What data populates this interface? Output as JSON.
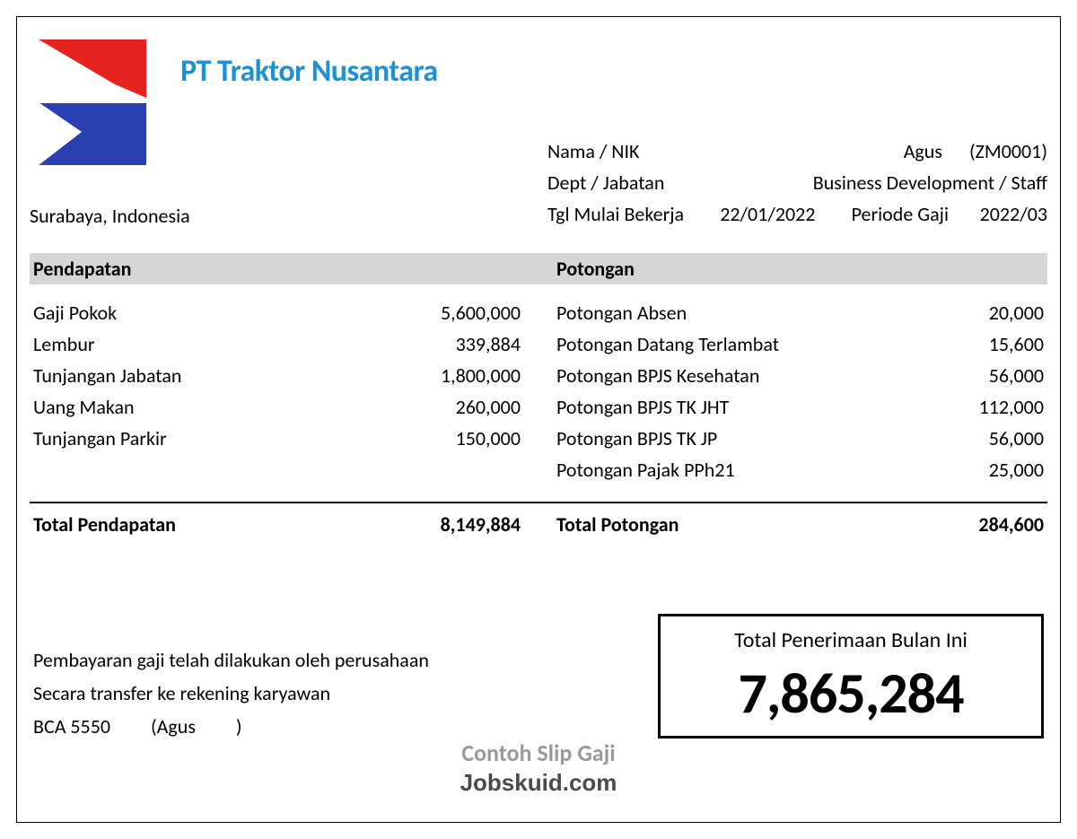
{
  "company": {
    "name": "PT Traktor Nusantara",
    "location": "Surabaya, Indonesia",
    "name_color": "#1e90d8",
    "logo_colors": {
      "red": "#e52421",
      "blue": "#2a3fb0",
      "white": "#ffffff"
    }
  },
  "employee": {
    "name_label": "Nama / NIK",
    "name": "Agus",
    "nik": "(ZM0001)",
    "dept_label": "Dept / Jabatan",
    "dept_value": "Business Development / Staff",
    "start_label": "Tgl Mulai Bekerja",
    "start_date": "22/01/2022",
    "period_label": "Periode Gaji",
    "period_value": "2022/03"
  },
  "sections": {
    "income_header": "Pendapatan",
    "deduction_header": "Potongan",
    "income_total_label": "Total Pendapatan",
    "income_total_value": "8,149,884",
    "deduction_total_label": "Total Potongan",
    "deduction_total_value": "284,600"
  },
  "income": [
    {
      "label": "Gaji Pokok",
      "value": "5,600,000"
    },
    {
      "label": "Lembur",
      "value": "339,884"
    },
    {
      "label": "Tunjangan Jabatan",
      "value": "1,800,000"
    },
    {
      "label": "Uang Makan",
      "value": "260,000"
    },
    {
      "label": "Tunjangan Parkir",
      "value": "150,000"
    }
  ],
  "deductions": [
    {
      "label": "Potongan Absen",
      "value": "20,000"
    },
    {
      "label": "Potongan Datang Terlambat",
      "value": "15,600"
    },
    {
      "label": "Potongan BPJS Kesehatan",
      "value": "56,000"
    },
    {
      "label": "Potongan BPJS TK JHT",
      "value": "112,000"
    },
    {
      "label": "Potongan BPJS TK JP",
      "value": "56,000"
    },
    {
      "label": "Potongan Pajak PPh21",
      "value": "25,000"
    }
  ],
  "payment": {
    "note1": "Pembayaran gaji telah dilakukan oleh perusahaan",
    "note2": "Secara transfer ke rekening karyawan",
    "bank": "BCA 5550",
    "holder_open": "(Agus",
    "holder_close": ")"
  },
  "net": {
    "label": "Total Penerimaan Bulan Ini",
    "amount": "7,865,284"
  },
  "watermark": {
    "line1": "Contoh Slip Gaji",
    "line2": "Jobskuid.com"
  },
  "styling": {
    "section_bar_bg": "#d6d6d6",
    "body_fontsize": 22,
    "title_fontsize": 34,
    "net_amount_fontsize": 64,
    "border_color": "#000000",
    "background": "#ffffff"
  }
}
